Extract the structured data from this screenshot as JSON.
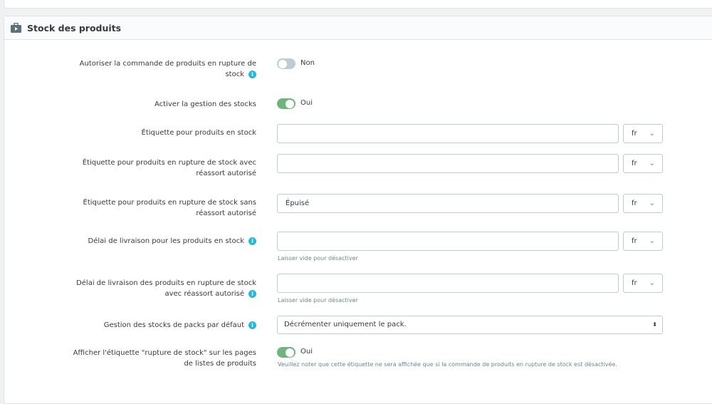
{
  "panel": {
    "title": "Stock des produits",
    "icon": "briefcase-icon"
  },
  "rows": {
    "allow_oos": {
      "label": "Autoriser la commande de produits en rupture de stock",
      "state": "Non",
      "enabled": false
    },
    "stock_mgmt": {
      "label": "Activer la gestion des stocks",
      "state": "Oui",
      "enabled": true
    },
    "label_in_stock": {
      "label": "Étiquette pour produits en stock",
      "value": "",
      "lang": "fr"
    },
    "label_oos_allowed": {
      "label": "Étiquette pour produits en rupture de stock avec réassort autorisé",
      "value": "",
      "lang": "fr"
    },
    "label_oos_denied": {
      "label": "Étiquette pour produits en rupture de stock sans réassort autorisé",
      "value": "Épuisé",
      "lang": "fr"
    },
    "delivery_in_stock": {
      "label": "Délai de livraison pour les produits en stock",
      "value": "",
      "lang": "fr",
      "help": "Laisser vide pour désactiver"
    },
    "delivery_oos": {
      "label": "Délai de livraison des produits en rupture de stock avec réassort autorisé",
      "value": "",
      "lang": "fr",
      "help": "Laisser vide pour désactiver"
    },
    "pack_stock": {
      "label": "Gestion des stocks de packs par défaut",
      "value": "Décrémenter uniquement le pack."
    },
    "display_oos": {
      "label": "Afficher l'étiquette \"rupture de stock\" sur les pages de listes de produits",
      "state": "Oui",
      "enabled": true,
      "help": "Veuillez noter que cette étiquette ne sera affichée que si la commande de produits en rupture de stock est désactivée."
    }
  },
  "colors": {
    "toggle_on": "#70b580",
    "toggle_off": "#bbcdd2",
    "info": "#25b9d7"
  }
}
